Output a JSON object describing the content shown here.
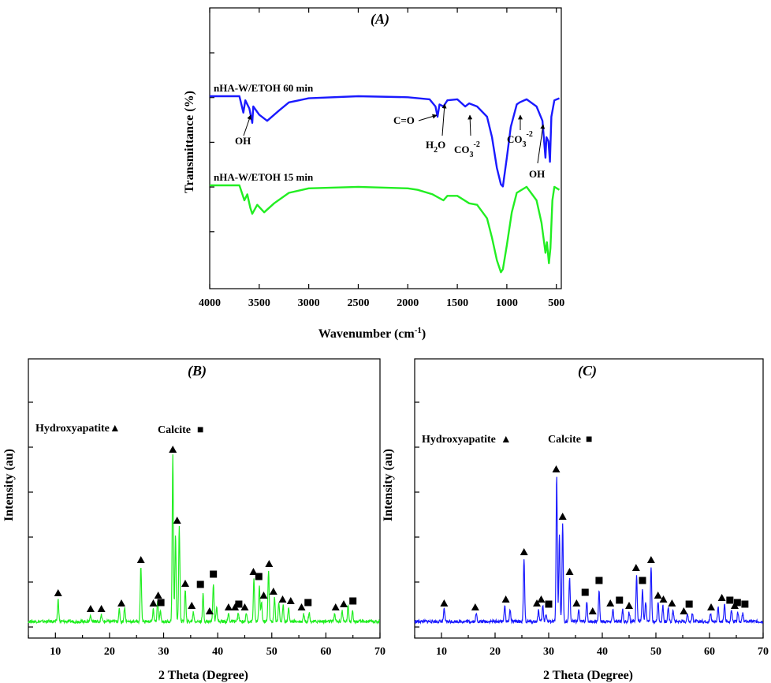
{
  "chart_data": [
    {
      "panel": "A",
      "type": "line",
      "title": "(A)",
      "xlabel": "Wavenumber (cm",
      "xlabel_sup": "-1",
      "xlabel_tail": ")",
      "ylabel": "Transmittance (%)",
      "xlim": [
        4000,
        450
      ],
      "x_reversed": true,
      "x_ticks": [
        4000,
        3500,
        3000,
        2500,
        2000,
        1500,
        1000,
        500
      ],
      "y_ticks_shown": false,
      "colors": {
        "nHA-W/ETOH 60 min": "#1a1aff",
        "nHA-W/ETOH 15 min": "#22ee22"
      },
      "series": [
        {
          "name": "nHA-W/ETOH 60 min",
          "points": [
            [
              4000,
              0
            ],
            [
              3700,
              0
            ],
            [
              3660,
              -0.8
            ],
            [
              3640,
              -0.2
            ],
            [
              3600,
              -0.6
            ],
            [
              3570,
              -1.3
            ],
            [
              3560,
              -0.5
            ],
            [
              3500,
              -0.9
            ],
            [
              3420,
              -1.2
            ],
            [
              3300,
              -0.7
            ],
            [
              3200,
              -0.3
            ],
            [
              3000,
              -0.1
            ],
            [
              2500,
              0
            ],
            [
              2000,
              -0.05
            ],
            [
              1780,
              -0.15
            ],
            [
              1720,
              -0.5
            ],
            [
              1700,
              -1.0
            ],
            [
              1680,
              -0.4
            ],
            [
              1640,
              -0.5
            ],
            [
              1600,
              -0.2
            ],
            [
              1500,
              -0.15
            ],
            [
              1420,
              -0.5
            ],
            [
              1380,
              -0.35
            ],
            [
              1300,
              -0.5
            ],
            [
              1200,
              -1.0
            ],
            [
              1150,
              -2.0
            ],
            [
              1100,
              -3.5
            ],
            [
              1060,
              -4.3
            ],
            [
              1040,
              -4.4
            ],
            [
              1000,
              -3.0
            ],
            [
              960,
              -1.5
            ],
            [
              900,
              -0.4
            ],
            [
              870,
              -0.3
            ],
            [
              800,
              -0.15
            ],
            [
              700,
              -0.5
            ],
            [
              640,
              -1.2
            ],
            [
              610,
              -3.0
            ],
            [
              600,
              -2.0
            ],
            [
              580,
              -2.2
            ],
            [
              565,
              -3.2
            ],
            [
              550,
              -1.0
            ],
            [
              520,
              -0.2
            ],
            [
              470,
              -0.1
            ]
          ]
        },
        {
          "name": "nHA-W/ETOH 15 min",
          "points": [
            [
              4000,
              0
            ],
            [
              3700,
              0
            ],
            [
              3650,
              -1.0
            ],
            [
              3620,
              -0.6
            ],
            [
              3590,
              -1.5
            ],
            [
              3570,
              -1.9
            ],
            [
              3520,
              -1.3
            ],
            [
              3450,
              -1.8
            ],
            [
              3350,
              -1.2
            ],
            [
              3200,
              -0.5
            ],
            [
              3000,
              -0.2
            ],
            [
              2500,
              -0.1
            ],
            [
              2000,
              -0.2
            ],
            [
              1900,
              -0.3
            ],
            [
              1750,
              -0.6
            ],
            [
              1640,
              -1.0
            ],
            [
              1600,
              -0.7
            ],
            [
              1500,
              -0.7
            ],
            [
              1380,
              -1.2
            ],
            [
              1300,
              -1.3
            ],
            [
              1200,
              -2.2
            ],
            [
              1150,
              -3.5
            ],
            [
              1100,
              -5.0
            ],
            [
              1060,
              -5.8
            ],
            [
              1040,
              -5.6
            ],
            [
              1000,
              -4.0
            ],
            [
              950,
              -1.8
            ],
            [
              900,
              -0.5
            ],
            [
              800,
              -0.1
            ],
            [
              700,
              -1.0
            ],
            [
              650,
              -2.5
            ],
            [
              610,
              -4.5
            ],
            [
              595,
              -3.8
            ],
            [
              575,
              -5.2
            ],
            [
              560,
              -4.2
            ],
            [
              540,
              -1.0
            ],
            [
              520,
              -0.1
            ],
            [
              470,
              -0.3
            ]
          ]
        }
      ],
      "annotations": [
        {
          "text": "OH",
          "x": 3560,
          "y": -1.3,
          "series": "nHA-W/ETOH 60 min"
        },
        {
          "text": "C=O",
          "x": 1700,
          "y": -1.0,
          "series": "nHA-W/ETOH 60 min"
        },
        {
          "text": "H",
          "sub": "2",
          "tail": "O",
          "x": 1640,
          "y": -0.5,
          "series": "nHA-W/ETOH 60 min"
        },
        {
          "text": "CO",
          "sub": "3",
          "sup": "-2",
          "x": 1420,
          "y": -0.5,
          "series": "nHA-W/ETOH 60 min"
        },
        {
          "text": "CO",
          "sub": "3",
          "sup": "-2",
          "x": 870,
          "y": -0.3,
          "series": "nHA-W/ETOH 60 min"
        },
        {
          "text": "OH",
          "x": 610,
          "y": -3.0,
          "series": "nHA-W/ETOH 60 min"
        }
      ]
    },
    {
      "panel": "B",
      "type": "line",
      "title": "(B)",
      "xlabel": "2 Theta (Degree)",
      "ylabel": "Intensity (au)",
      "xlim": [
        5,
        70
      ],
      "x_ticks": [
        10,
        20,
        30,
        40,
        50,
        60,
        70
      ],
      "y_ticks_shown": false,
      "color": "#22ee22",
      "legend": [
        {
          "label": "Hydroxyapatite",
          "marker": "▲"
        },
        {
          "label": "Calcite",
          "marker": "■"
        }
      ],
      "peaks": [
        [
          10.5,
          28
        ],
        [
          16.5,
          8
        ],
        [
          18.5,
          8
        ],
        [
          21.8,
          15
        ],
        [
          22.8,
          18
        ],
        [
          25.8,
          70
        ],
        [
          28.1,
          15
        ],
        [
          28.9,
          25
        ],
        [
          29.4,
          12
        ],
        [
          31.7,
          210
        ],
        [
          32.2,
          110
        ],
        [
          32.9,
          120
        ],
        [
          34.0,
          40
        ],
        [
          35.5,
          12
        ],
        [
          37.3,
          35
        ],
        [
          39.2,
          48
        ],
        [
          39.8,
          20
        ],
        [
          42.0,
          10
        ],
        [
          43.8,
          10
        ],
        [
          45.3,
          10
        ],
        [
          46.7,
          55
        ],
        [
          47.7,
          45
        ],
        [
          48.1,
          25
        ],
        [
          49.4,
          65
        ],
        [
          50.5,
          30
        ],
        [
          51.3,
          25
        ],
        [
          52.1,
          20
        ],
        [
          53.1,
          18
        ],
        [
          55.9,
          10
        ],
        [
          56.9,
          12
        ],
        [
          61.6,
          10
        ],
        [
          63.0,
          14
        ],
        [
          64.1,
          20
        ],
        [
          64.9,
          14
        ]
      ],
      "hydroxyapatite_markers": [
        10.5,
        16.5,
        18.5,
        22.2,
        25.8,
        28.1,
        29.0,
        31.7,
        32.5,
        34.0,
        35.2,
        38.5,
        42.0,
        43.2,
        45.0,
        46.6,
        48.5,
        49.5,
        50.3,
        52.0,
        53.5,
        55.5,
        61.8,
        63.3
      ],
      "calcite_markers": [
        29.5,
        36.8,
        39.2,
        43.9,
        47.6,
        56.7,
        65.0
      ]
    },
    {
      "panel": "C",
      "type": "line",
      "title": "(C)",
      "xlabel": "2 Theta (Degree)",
      "ylabel": "Intensity (au)",
      "xlim": [
        5,
        70
      ],
      "x_ticks": [
        10,
        20,
        30,
        40,
        50,
        60,
        70
      ],
      "y_ticks_shown": false,
      "color": "#1a1aff",
      "legend": [
        {
          "label": "Hydroxyapatite",
          "marker": "▲"
        },
        {
          "label": "Calcite",
          "marker": "■"
        }
      ],
      "peaks": [
        [
          10.5,
          15
        ],
        [
          16.5,
          10
        ],
        [
          21.8,
          20
        ],
        [
          22.8,
          15
        ],
        [
          25.4,
          80
        ],
        [
          28.1,
          15
        ],
        [
          28.9,
          20
        ],
        [
          29.5,
          10
        ],
        [
          31.5,
          185
        ],
        [
          32.0,
          110
        ],
        [
          32.6,
          125
        ],
        [
          33.9,
          55
        ],
        [
          35.6,
          15
        ],
        [
          37.1,
          25
        ],
        [
          39.4,
          40
        ],
        [
          42.0,
          15
        ],
        [
          43.8,
          15
        ],
        [
          45.0,
          12
        ],
        [
          46.4,
          60
        ],
        [
          47.5,
          40
        ],
        [
          48.1,
          25
        ],
        [
          49.1,
          70
        ],
        [
          50.4,
          25
        ],
        [
          51.3,
          20
        ],
        [
          52.3,
          18
        ],
        [
          53.2,
          15
        ],
        [
          55.9,
          10
        ],
        [
          56.8,
          10
        ],
        [
          60.2,
          10
        ],
        [
          61.6,
          18
        ],
        [
          62.8,
          22
        ],
        [
          64.1,
          15
        ],
        [
          65.3,
          12
        ],
        [
          66.2,
          10
        ]
      ],
      "hydroxyapatite_markers": [
        10.5,
        16.3,
        22.0,
        25.4,
        27.8,
        28.6,
        31.4,
        32.6,
        33.9,
        35.2,
        38.2,
        41.5,
        45.0,
        46.3,
        49.1,
        50.4,
        51.4,
        53.0,
        55.2,
        60.3,
        62.3,
        64.7
      ],
      "calcite_markers": [
        30.0,
        36.8,
        39.4,
        43.2,
        47.5,
        56.2,
        63.8,
        65.2,
        66.6
      ]
    }
  ]
}
